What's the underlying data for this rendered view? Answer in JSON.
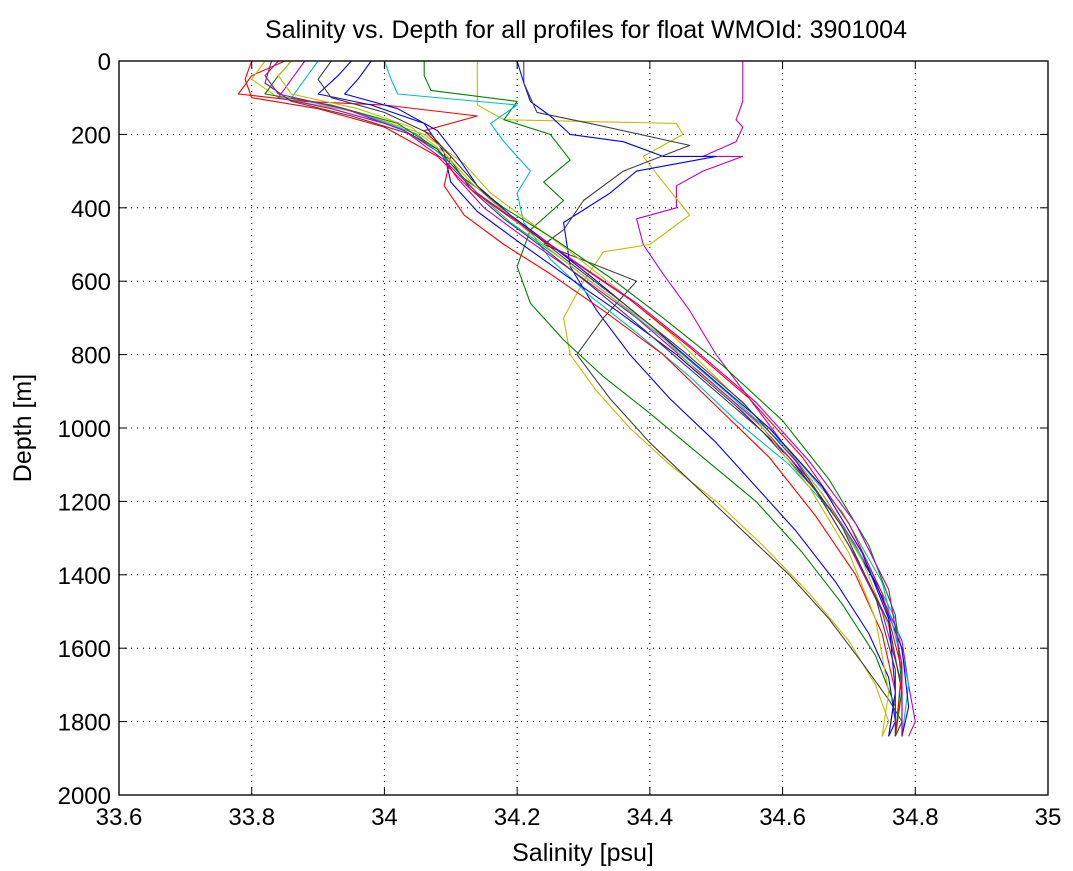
{
  "chart_data": {
    "type": "line",
    "title": "Salinity vs. Depth for all profiles for float WMOId: 3901004",
    "xlabel": "Salinity [psu]",
    "ylabel": "Depth [m]",
    "xlim": [
      33.6,
      35.0
    ],
    "ylim": [
      0,
      2000
    ],
    "y_reversed": true,
    "grid": true,
    "legend": "none",
    "x_ticks": [
      "33.6",
      "33.8",
      "34",
      "34.2",
      "34.4",
      "34.6",
      "34.8",
      "35"
    ],
    "y_ticks": [
      "0",
      "200",
      "400",
      "600",
      "800",
      "1000",
      "1200",
      "1400",
      "1600",
      "1800",
      "2000"
    ],
    "x_tick_values": [
      33.6,
      33.8,
      34.0,
      34.2,
      34.4,
      34.6,
      34.8,
      35.0
    ],
    "y_tick_values": [
      0,
      200,
      400,
      600,
      800,
      1000,
      1200,
      1400,
      1600,
      1800,
      2000
    ],
    "colors": [
      "#0000ff",
      "#008000",
      "#ff0000",
      "#00bfbf",
      "#bf00bf",
      "#bfbf00",
      "#404040"
    ],
    "series": [
      {
        "color": "#bf00bf",
        "x": [
          34.54,
          34.54,
          34.54,
          34.53,
          34.54,
          34.53,
          34.48,
          34.54,
          34.48,
          34.44,
          34.44,
          34.38,
          34.39,
          34.42,
          34.46,
          34.5,
          34.55,
          34.6,
          34.66,
          34.71,
          34.75,
          34.78,
          34.79,
          34.8,
          34.79
        ],
        "y": [
          0,
          40,
          110,
          160,
          180,
          220,
          260,
          260,
          300,
          340,
          400,
          430,
          500,
          580,
          680,
          800,
          920,
          1040,
          1180,
          1320,
          1460,
          1580,
          1700,
          1800,
          1840
        ]
      },
      {
        "color": "#bfbf00",
        "x": [
          34.14,
          34.14,
          34.14,
          34.18,
          34.44,
          34.45,
          34.39,
          34.42,
          34.46,
          34.4,
          34.33,
          34.3,
          34.27,
          34.28,
          34.32,
          34.37,
          34.43,
          34.5,
          34.57,
          34.64,
          34.7,
          34.74,
          34.76,
          34.75
        ],
        "y": [
          0,
          60,
          120,
          160,
          170,
          200,
          260,
          330,
          420,
          500,
          520,
          600,
          700,
          800,
          900,
          1000,
          1100,
          1200,
          1320,
          1450,
          1580,
          1700,
          1800,
          1840
        ]
      },
      {
        "color": "#0000ff",
        "x": [
          34.2,
          34.21,
          34.22,
          34.25,
          34.28,
          34.36,
          34.42,
          34.5,
          34.38,
          34.34,
          34.27,
          34.28,
          34.32,
          34.37,
          34.43,
          34.5,
          34.56,
          34.62,
          34.68,
          34.73,
          34.76,
          34.77,
          34.76
        ],
        "y": [
          0,
          60,
          110,
          150,
          200,
          220,
          260,
          260,
          300,
          360,
          440,
          560,
          680,
          800,
          920,
          1040,
          1160,
          1280,
          1420,
          1560,
          1680,
          1800,
          1840
        ]
      },
      {
        "color": "#404040",
        "x": [
          34.21,
          34.21,
          34.22,
          34.23,
          34.31,
          34.46,
          34.36,
          34.3,
          34.27,
          34.24,
          34.38,
          34.33,
          34.29,
          34.34,
          34.4,
          34.47,
          34.54,
          34.61,
          34.67,
          34.72,
          34.76,
          34.78,
          34.77
        ],
        "y": [
          0,
          60,
          100,
          140,
          170,
          230,
          300,
          380,
          460,
          500,
          600,
          700,
          800,
          920,
          1040,
          1160,
          1280,
          1400,
          1520,
          1640,
          1740,
          1800,
          1840
        ]
      },
      {
        "color": "#008000",
        "x": [
          34.06,
          34.06,
          34.07,
          34.2,
          34.18,
          34.25,
          34.28,
          34.24,
          34.27,
          34.22,
          34.2,
          34.22,
          34.27,
          34.33,
          34.4,
          34.48,
          34.56,
          34.63,
          34.69,
          34.74,
          34.77,
          34.77
        ],
        "y": [
          0,
          40,
          80,
          110,
          160,
          200,
          270,
          330,
          380,
          460,
          560,
          660,
          760,
          860,
          960,
          1080,
          1200,
          1340,
          1480,
          1620,
          1760,
          1840
        ]
      },
      {
        "color": "#00bfbf",
        "x": [
          34.0,
          34.01,
          34.02,
          34.2,
          34.16,
          34.18,
          34.22,
          34.2,
          34.21,
          34.25,
          34.31,
          34.38,
          34.46,
          34.53,
          34.61,
          34.68,
          34.73,
          34.77,
          34.79,
          34.78
        ],
        "y": [
          0,
          50,
          90,
          120,
          170,
          220,
          300,
          360,
          440,
          540,
          640,
          740,
          860,
          980,
          1100,
          1240,
          1380,
          1520,
          1700,
          1840
        ]
      },
      {
        "color": "#ff0000",
        "x": [
          33.85,
          33.8,
          33.78,
          33.88,
          34.0,
          34.14,
          34.06,
          34.1,
          34.09,
          34.12,
          34.18,
          34.25,
          34.33,
          34.42,
          34.5,
          34.58,
          34.65,
          34.71,
          34.75,
          34.77,
          34.76
        ],
        "y": [
          0,
          40,
          90,
          110,
          120,
          150,
          190,
          260,
          340,
          420,
          500,
          580,
          680,
          800,
          940,
          1080,
          1240,
          1400,
          1560,
          1720,
          1840
        ]
      },
      {
        "color": "#0000ff",
        "x": [
          33.95,
          33.93,
          33.9,
          33.98,
          34.06,
          34.09,
          34.1,
          34.14,
          34.2,
          34.27,
          34.35,
          34.44,
          34.53,
          34.61,
          34.68,
          34.74,
          34.78,
          34.79,
          34.78
        ],
        "y": [
          0,
          40,
          90,
          120,
          170,
          250,
          330,
          410,
          490,
          580,
          680,
          800,
          940,
          1080,
          1240,
          1420,
          1600,
          1760,
          1840
        ]
      },
      {
        "color": "#bfbf00",
        "x": [
          33.82,
          33.8,
          33.84,
          33.96,
          34.06,
          34.12,
          34.16,
          34.22,
          34.28,
          34.35,
          34.43,
          34.51,
          34.59,
          34.66,
          34.72,
          34.76,
          34.78,
          34.77
        ],
        "y": [
          0,
          50,
          100,
          140,
          200,
          280,
          360,
          440,
          520,
          620,
          740,
          880,
          1020,
          1180,
          1360,
          1540,
          1720,
          1840
        ]
      },
      {
        "color": "#bf00bf",
        "x": [
          33.88,
          33.86,
          33.84,
          33.92,
          34.02,
          34.08,
          34.11,
          34.15,
          34.21,
          34.29,
          34.38,
          34.47,
          34.56,
          34.64,
          34.7,
          34.75,
          34.78,
          34.78
        ],
        "y": [
          0,
          50,
          100,
          130,
          180,
          240,
          320,
          400,
          480,
          580,
          700,
          840,
          980,
          1140,
          1320,
          1500,
          1700,
          1840
        ]
      },
      {
        "color": "#404040",
        "x": [
          33.83,
          33.82,
          33.86,
          33.95,
          34.04,
          34.1,
          34.13,
          34.18,
          34.24,
          34.31,
          34.39,
          34.48,
          34.57,
          34.65,
          34.71,
          34.76,
          34.78,
          34.78
        ],
        "y": [
          0,
          60,
          110,
          150,
          200,
          270,
          350,
          430,
          510,
          610,
          730,
          870,
          1010,
          1170,
          1350,
          1530,
          1720,
          1840
        ]
      },
      {
        "color": "#00bfbf",
        "x": [
          33.9,
          33.88,
          33.86,
          33.96,
          34.05,
          34.1,
          34.14,
          34.19,
          34.26,
          34.34,
          34.43,
          34.52,
          34.61,
          34.69,
          34.75,
          34.78,
          34.77
        ],
        "y": [
          0,
          50,
          100,
          140,
          200,
          280,
          360,
          440,
          530,
          640,
          770,
          910,
          1060,
          1230,
          1420,
          1640,
          1840
        ]
      },
      {
        "color": "#008000",
        "x": [
          33.86,
          33.84,
          33.82,
          33.92,
          34.02,
          34.08,
          34.12,
          34.18,
          34.26,
          34.34,
          34.42,
          34.51,
          34.6,
          34.67,
          34.73,
          34.77,
          34.78,
          34.77
        ],
        "y": [
          0,
          40,
          90,
          120,
          170,
          240,
          320,
          400,
          490,
          590,
          700,
          830,
          980,
          1140,
          1320,
          1510,
          1710,
          1840
        ]
      },
      {
        "color": "#ff0000",
        "x": [
          33.8,
          33.79,
          33.8,
          33.9,
          34.0,
          34.08,
          34.13,
          34.2,
          34.28,
          34.37,
          34.46,
          34.55,
          34.63,
          34.7,
          34.75,
          34.78,
          34.77
        ],
        "y": [
          0,
          50,
          100,
          130,
          180,
          260,
          350,
          440,
          540,
          650,
          780,
          920,
          1080,
          1260,
          1450,
          1660,
          1840
        ]
      },
      {
        "color": "#0000ff",
        "x": [
          33.98,
          33.96,
          33.94,
          34.02,
          34.08,
          34.11,
          34.14,
          34.19,
          34.25,
          34.32,
          34.4,
          34.49,
          34.58,
          34.66,
          34.72,
          34.76,
          34.77,
          34.76
        ],
        "y": [
          0,
          50,
          90,
          130,
          190,
          260,
          340,
          420,
          500,
          600,
          720,
          860,
          1000,
          1160,
          1340,
          1520,
          1720,
          1840
        ]
      },
      {
        "color": "#bfbf00",
        "x": [
          33.86,
          33.84,
          33.86,
          33.96,
          34.04,
          34.09,
          34.13,
          34.18,
          34.24,
          34.31,
          34.4,
          34.48,
          34.57,
          34.64,
          34.7,
          34.74,
          34.76,
          34.75
        ],
        "y": [
          0,
          40,
          90,
          130,
          180,
          250,
          330,
          410,
          500,
          600,
          720,
          860,
          1000,
          1160,
          1340,
          1520,
          1720,
          1840
        ]
      },
      {
        "color": "#404040",
        "x": [
          33.92,
          33.9,
          33.92,
          34.0,
          34.07,
          34.11,
          34.15,
          34.21,
          34.28,
          34.36,
          34.45,
          34.54,
          34.62,
          34.69,
          34.74,
          34.77,
          34.77
        ],
        "y": [
          0,
          50,
          100,
          140,
          200,
          280,
          360,
          450,
          550,
          660,
          790,
          930,
          1090,
          1270,
          1460,
          1660,
          1840
        ]
      },
      {
        "color": "#bf00bf",
        "x": [
          33.84,
          33.82,
          33.84,
          33.94,
          34.03,
          34.09,
          34.14,
          34.21,
          34.29,
          34.38,
          34.47,
          34.56,
          34.64,
          34.71,
          34.76,
          34.78,
          34.78
        ],
        "y": [
          0,
          40,
          90,
          130,
          190,
          270,
          360,
          450,
          550,
          660,
          790,
          930,
          1090,
          1260,
          1440,
          1650,
          1840
        ]
      }
    ]
  }
}
